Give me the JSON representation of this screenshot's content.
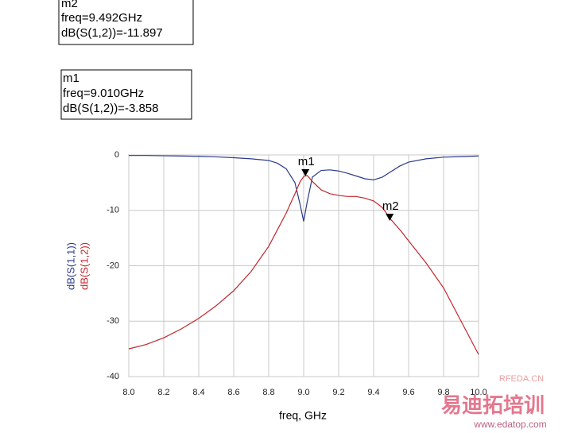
{
  "chart_data": {
    "type": "line",
    "xlabel": "freq, GHz",
    "x": [
      8.0,
      8.1,
      8.2,
      8.3,
      8.4,
      8.5,
      8.6,
      8.7,
      8.8,
      8.85,
      8.9,
      8.95,
      8.98,
      9.0,
      9.02,
      9.05,
      9.1,
      9.15,
      9.2,
      9.25,
      9.3,
      9.35,
      9.4,
      9.45,
      9.5,
      9.55,
      9.6,
      9.7,
      9.8,
      9.9,
      10.0
    ],
    "series": [
      {
        "name": "dB(S(1,1))",
        "color": "#2b3a8c",
        "values": [
          -0.1,
          -0.1,
          -0.15,
          -0.2,
          -0.25,
          -0.35,
          -0.5,
          -0.7,
          -1.0,
          -1.5,
          -2.5,
          -5,
          -9,
          -12,
          -8.5,
          -4,
          -2.8,
          -2.7,
          -2.9,
          -3.3,
          -3.8,
          -4.3,
          -4.5,
          -4,
          -3,
          -2,
          -1.3,
          -0.7,
          -0.4,
          -0.3,
          -0.2
        ]
      },
      {
        "name": "dB(S(1,2))",
        "color": "#c0282d",
        "values": [
          -35,
          -34.2,
          -33,
          -31.4,
          -29.5,
          -27.2,
          -24.5,
          -21,
          -16.5,
          -13.5,
          -10.5,
          -7,
          -4.8,
          -3.9,
          -3.7,
          -4.8,
          -6.3,
          -7,
          -7.3,
          -7.5,
          -7.5,
          -7.8,
          -8.3,
          -9.5,
          -11.7,
          -13.5,
          -15.5,
          -19.5,
          -24,
          -30,
          -36
        ]
      }
    ],
    "xlim": [
      8,
      10
    ],
    "ylim": [
      -40,
      0
    ],
    "xticks": [
      {
        "value": 8,
        "label": "8.0"
      },
      8.2,
      8.4,
      8.6,
      8.8,
      {
        "value": 9,
        "label": "9.0"
      },
      9.2,
      9.4,
      9.6,
      9.8,
      {
        "value": 10,
        "label": "10.0"
      }
    ],
    "yticks": [
      0,
      -10,
      -20,
      -30,
      -40
    ],
    "grid": true,
    "markers": [
      {
        "name": "m1",
        "x": 9.01,
        "y": -3.858,
        "lines": [
          "m1",
          "freq=9.010GHz",
          "dB(S(1,2))=-3.858"
        ]
      },
      {
        "name": "m2",
        "x": 9.492,
        "y": -11.897,
        "lines": [
          "m2",
          "freq=9.492GHz",
          "dB(S(1,2))=-11.897"
        ]
      }
    ],
    "watermark": [
      "RFEDA.CN",
      "易迪拓培训",
      "www.edatop.com"
    ]
  }
}
